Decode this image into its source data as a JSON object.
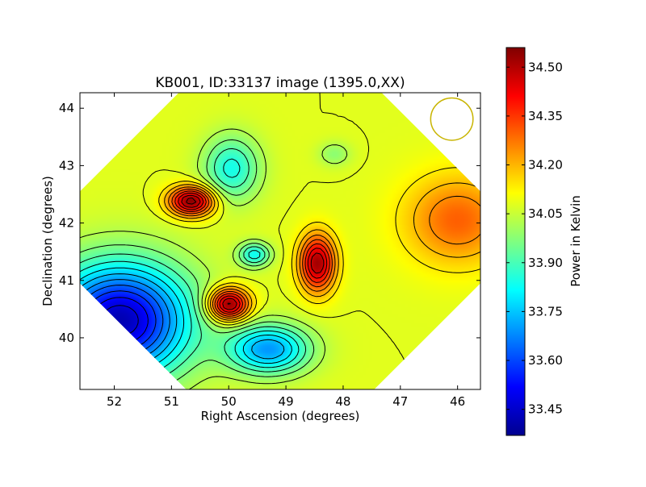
{
  "chart_data": {
    "type": "heatmap",
    "title": "KB001, ID:33137 image (1395.0,XX)",
    "xlabel": "Right Ascension (degrees)",
    "ylabel": "Declination (degrees)",
    "xlim": [
      52.6,
      45.6
    ],
    "ylim": [
      39.1,
      44.27
    ],
    "x_ticks": [
      52,
      51,
      50,
      49,
      48,
      47,
      46
    ],
    "y_ticks": [
      40,
      41,
      42,
      43,
      44
    ],
    "colorbar": {
      "label": "Power in Kelvin",
      "range": [
        33.37,
        34.56
      ],
      "ticks": [
        "33.45",
        "33.60",
        "33.75",
        "33.90",
        "34.05",
        "34.20",
        "34.35",
        "34.50"
      ],
      "colormap": "jet"
    },
    "field_center": {
      "ra": 49.1,
      "dec": 41.75
    },
    "background_level": 34.08,
    "components": [
      {
        "ra": 50.65,
        "dec": 42.38,
        "amplitude": 0.48,
        "sigma_ra": 0.28,
        "sigma_dec": 0.18
      },
      {
        "ra": 48.45,
        "dec": 41.3,
        "amplitude": 0.44,
        "sigma_ra": 0.22,
        "sigma_dec": 0.35
      },
      {
        "ra": 50.0,
        "dec": 40.58,
        "amplitude": 0.5,
        "sigma_ra": 0.25,
        "sigma_dec": 0.2
      },
      {
        "ra": 46.0,
        "dec": 42.05,
        "amplitude": 0.22,
        "sigma_ra": 0.65,
        "sigma_dec": 0.55
      },
      {
        "ra": 51.9,
        "dec": 40.3,
        "amplitude": -0.65,
        "sigma_ra": 0.85,
        "sigma_dec": 0.7
      },
      {
        "ra": 49.3,
        "dec": 39.8,
        "amplitude": -0.38,
        "sigma_ra": 0.5,
        "sigma_dec": 0.3
      },
      {
        "ra": 49.95,
        "dec": 42.95,
        "amplitude": -0.24,
        "sigma_ra": 0.35,
        "sigma_dec": 0.4
      },
      {
        "ra": 49.55,
        "dec": 41.45,
        "amplitude": -0.25,
        "sigma_ra": 0.2,
        "sigma_dec": 0.15
      },
      {
        "ra": 48.15,
        "dec": 43.2,
        "amplitude": -0.1,
        "sigma_ra": 0.2,
        "sigma_dec": 0.15
      }
    ],
    "beam": {
      "ra": 46.1,
      "dec": 43.81,
      "radius_deg": 0.37,
      "color": "#c8b400"
    }
  }
}
